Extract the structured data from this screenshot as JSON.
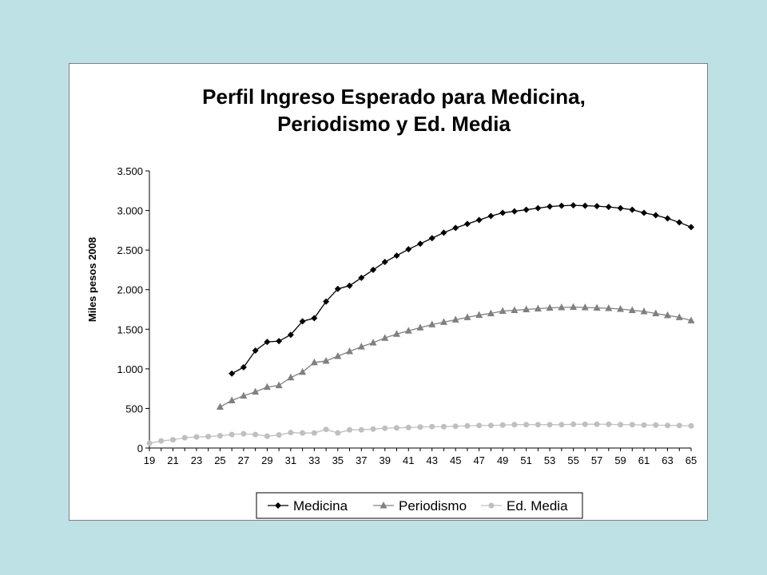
{
  "chart_data": {
    "type": "line",
    "title_lines": [
      "Perfil Ingreso Esperado para Medicina,",
      "Periodismo y Ed. Media"
    ],
    "xlabel": "",
    "ylabel": "Miles pesos 2008",
    "ylim": [
      0,
      3500
    ],
    "y_ticks": [
      0,
      500,
      1000,
      1500,
      2000,
      2500,
      3000,
      3500
    ],
    "y_tick_labels": [
      "0",
      "500",
      "1.000",
      "1.500",
      "2.000",
      "2.500",
      "3.000",
      "3.500"
    ],
    "x_tick_labels": [
      "19",
      "21",
      "23",
      "25",
      "27",
      "29",
      "31",
      "33",
      "35",
      "37",
      "39",
      "41",
      "43",
      "45",
      "47",
      "49",
      "51",
      "53",
      "55",
      "57",
      "59",
      "61",
      "63",
      "65"
    ],
    "x": [
      19,
      20,
      21,
      22,
      23,
      24,
      25,
      26,
      27,
      28,
      29,
      30,
      31,
      32,
      33,
      34,
      35,
      36,
      37,
      38,
      39,
      40,
      41,
      42,
      43,
      44,
      45,
      46,
      47,
      48,
      49,
      50,
      51,
      52,
      53,
      54,
      55,
      56,
      57,
      58,
      59,
      60,
      61,
      62,
      63,
      64,
      65
    ],
    "grid": false,
    "legend_position": "bottom",
    "series": [
      {
        "name": "Medicina",
        "color": "#000000",
        "marker": "diamond",
        "values": [
          null,
          null,
          null,
          null,
          null,
          null,
          null,
          940,
          1020,
          1230,
          1340,
          1350,
          1430,
          1600,
          1640,
          1850,
          2010,
          2050,
          2150,
          2250,
          2350,
          2430,
          2510,
          2580,
          2650,
          2720,
          2780,
          2830,
          2880,
          2930,
          2970,
          2990,
          3010,
          3030,
          3050,
          3060,
          3065,
          3060,
          3055,
          3045,
          3030,
          3010,
          2970,
          2940,
          2900,
          2850,
          2790
        ]
      },
      {
        "name": "Periodismo",
        "color": "#808080",
        "marker": "triangle",
        "values": [
          null,
          null,
          null,
          null,
          null,
          null,
          520,
          600,
          660,
          710,
          770,
          790,
          890,
          960,
          1080,
          1100,
          1160,
          1220,
          1280,
          1330,
          1390,
          1440,
          1480,
          1520,
          1560,
          1590,
          1620,
          1650,
          1680,
          1700,
          1730,
          1740,
          1750,
          1760,
          1770,
          1775,
          1780,
          1775,
          1770,
          1765,
          1755,
          1740,
          1725,
          1700,
          1675,
          1650,
          1610
        ]
      },
      {
        "name": "Ed. Media",
        "color": "#bfbfbf",
        "marker": "circle",
        "values": [
          60,
          90,
          105,
          130,
          140,
          145,
          155,
          170,
          180,
          170,
          150,
          165,
          195,
          190,
          190,
          235,
          190,
          230,
          230,
          240,
          250,
          255,
          260,
          265,
          270,
          270,
          275,
          280,
          285,
          285,
          290,
          295,
          295,
          295,
          295,
          295,
          300,
          300,
          300,
          300,
          295,
          295,
          290,
          290,
          285,
          285,
          280
        ]
      }
    ]
  }
}
